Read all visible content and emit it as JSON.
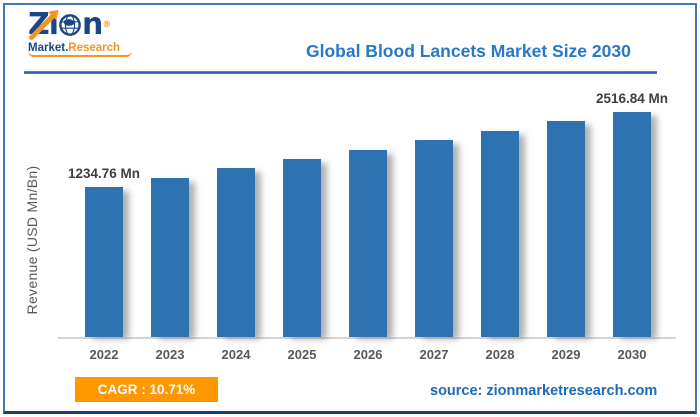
{
  "header": {
    "logo": {
      "brand_zi": "Zi",
      "brand_n": "n",
      "registered": "®",
      "subtitle_market": "Market.",
      "subtitle_research": "Research",
      "navy": "#1b4586",
      "orange": "#f7941d"
    }
  },
  "chart_data": {
    "type": "bar",
    "title": "Global Blood Lancets Market Size 2030",
    "categories": [
      "2022",
      "2023",
      "2024",
      "2025",
      "2026",
      "2027",
      "2028",
      "2029",
      "2030"
    ],
    "values": [
      1234.76,
      1395.02,
      1555.28,
      1715.54,
      1875.8,
      2036.06,
      2196.32,
      2356.58,
      2516.84
    ],
    "values_note": "only first and last bars are labeled in the image; intermediate values estimated from bar heights",
    "data_labels": [
      "1234.76 Mn",
      "",
      "",
      "",
      "",
      "",
      "",
      "",
      "2516.84 Mn"
    ],
    "xlabel": "",
    "ylabel": "Revenue (USD Mn/Bn)",
    "unit": "USD Mn",
    "bar_color": "#2e73b1",
    "grid": "off",
    "legend": "none",
    "y_axis_ticks": "none visible"
  },
  "footer": {
    "cagr_label": "CAGR : 10.71%",
    "cagr_value": "10.71%",
    "accent_color": "#ff9800",
    "source_label": "source: zionmarketresearch.com"
  }
}
